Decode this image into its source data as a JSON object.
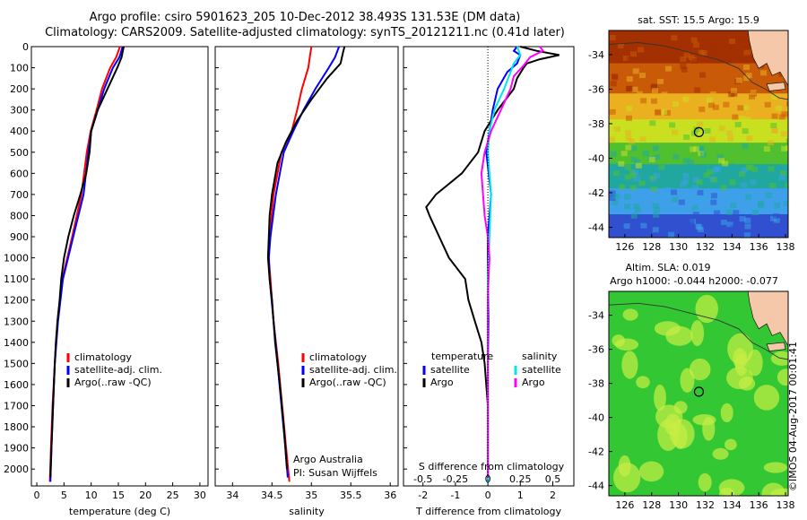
{
  "header": {
    "title_line1": "Argo profile: csiro 5901623_205 10-Dec-2012 38.493S 131.53E (DM data)",
    "title_line2": "Climatology: CARS2009. Satellite-adjusted climatology: synTS_20121211.nc (0.41d later)"
  },
  "watermark": "©IMOS 04-Aug-2017 00:01:41",
  "colors": {
    "climatology": "#ff0000",
    "satellite": "#0000ff",
    "argo": "#000000",
    "sal_satellite": "#00e5ee",
    "sal_argo": "#ff00ff"
  },
  "chart_data": [
    {
      "type": "line",
      "xlabel": "temperature (deg C)",
      "xticks": [
        0,
        5,
        10,
        15,
        20,
        25,
        30
      ],
      "xlim": [
        -1,
        31.5
      ],
      "ylim": [
        0,
        2080
      ],
      "yticks": [
        0,
        100,
        200,
        300,
        400,
        500,
        600,
        700,
        800,
        900,
        1000,
        1100,
        1200,
        1300,
        1400,
        1500,
        1600,
        1700,
        1800,
        1900,
        2000
      ],
      "legend": [
        "climatology",
        "satellite-adj. clim.",
        "Argo(..raw -QC)"
      ],
      "series": [
        {
          "name": "climatology",
          "color": "#ff0000",
          "depth": [
            0,
            50,
            100,
            200,
            300,
            400,
            500,
            700,
            900,
            1100,
            1300,
            1500,
            1700,
            1900,
            2060
          ],
          "values": [
            15.3,
            14.6,
            13.5,
            12.0,
            11.0,
            9.9,
            9.2,
            8.2,
            6.5,
            4.7,
            3.8,
            3.3,
            2.9,
            2.6,
            2.4
          ]
        },
        {
          "name": "satellite-adj. clim.",
          "color": "#0000ff",
          "depth": [
            0,
            50,
            100,
            200,
            300,
            400,
            500,
            700,
            900,
            1100,
            1300,
            1500,
            1700,
            1900,
            2060
          ],
          "values": [
            15.8,
            15.2,
            14.0,
            12.4,
            11.2,
            10.0,
            9.5,
            8.6,
            6.7,
            4.8,
            3.9,
            3.3,
            3.0,
            2.7,
            2.5
          ]
        },
        {
          "name": "Argo(..raw -QC)",
          "color": "#000000",
          "depth": [
            0,
            50,
            100,
            200,
            300,
            400,
            500,
            600,
            700,
            800,
            900,
            1000,
            1100,
            1200,
            1300,
            1400,
            1500,
            1700,
            1900,
            2040
          ],
          "values": [
            16.0,
            15.6,
            14.8,
            13.0,
            11.2,
            10.0,
            9.7,
            9.1,
            8.0,
            6.8,
            5.8,
            5.0,
            4.5,
            4.2,
            3.8,
            3.5,
            3.3,
            3.0,
            2.7,
            2.5
          ]
        }
      ]
    },
    {
      "type": "line",
      "xlabel": "salinity",
      "xticks": [
        34,
        34.5,
        35,
        35.5,
        36
      ],
      "xlim": [
        33.78,
        36.1
      ],
      "ylim": [
        0,
        2080
      ],
      "annotation": [
        "Argo Australia",
        "PI: Susan Wijffels"
      ],
      "legend": [
        "climatology",
        "satellite-adj. clim.",
        "Argo(..raw -QC)"
      ],
      "series": [
        {
          "name": "climatology",
          "color": "#ff0000",
          "depth": [
            0,
            50,
            100,
            200,
            300,
            400,
            500,
            700,
            900,
            1000,
            1100,
            1300,
            1500,
            1700,
            1900,
            2060
          ],
          "values": [
            35.0,
            34.98,
            34.96,
            34.88,
            34.82,
            34.75,
            34.62,
            34.52,
            34.47,
            34.46,
            34.48,
            34.52,
            34.58,
            34.63,
            34.68,
            34.72
          ]
        },
        {
          "name": "satellite-adj. clim.",
          "color": "#0000ff",
          "depth": [
            0,
            50,
            100,
            200,
            300,
            400,
            500,
            700,
            900,
            1000,
            1100,
            1300,
            1500,
            1700,
            1900,
            2040
          ],
          "values": [
            35.35,
            35.3,
            35.22,
            35.05,
            34.9,
            34.77,
            34.65,
            34.55,
            34.48,
            34.46,
            34.47,
            34.52,
            34.57,
            34.62,
            34.67,
            34.7
          ]
        },
        {
          "name": "Argo(..raw -QC)",
          "color": "#000000",
          "depth": [
            0,
            30,
            80,
            150,
            250,
            350,
            450,
            550,
            700,
            800,
            900,
            1000,
            1100,
            1200,
            1400,
            1600,
            1800,
            2000
          ],
          "values": [
            35.42,
            35.4,
            35.37,
            35.2,
            35.0,
            34.82,
            34.68,
            34.57,
            34.5,
            34.47,
            34.46,
            34.45,
            34.47,
            34.5,
            34.54,
            34.6,
            34.65,
            34.69
          ]
        }
      ]
    },
    {
      "type": "line",
      "xlabel": "T difference from climatology",
      "xlabel_top": "S difference from climatology",
      "xticks": [
        -2,
        -1,
        0,
        1,
        2
      ],
      "xticks_top": [
        "-0.5",
        "-0.25",
        "0",
        "0.25",
        "0.5"
      ],
      "xlim": [
        -2.6,
        2.65
      ],
      "ylim": [
        0,
        2080
      ],
      "legend_left": [
        "temperature",
        "satellite",
        "Argo"
      ],
      "legend_right": [
        "salinity",
        "satellite",
        "Argo"
      ],
      "series": [
        {
          "name": "temperature satellite",
          "color": "#0000ff",
          "depth": [
            0,
            20,
            40,
            80,
            120,
            200,
            300,
            400,
            500,
            700,
            900,
            1100,
            1300,
            1500,
            1700,
            1900,
            2060
          ],
          "values": [
            0.9,
            0.8,
            1.0,
            0.9,
            0.6,
            0.3,
            0.15,
            0.05,
            -0.05,
            0.1,
            0.0,
            0.0,
            0.02,
            0.0,
            0.0,
            0.0,
            0.0
          ]
        },
        {
          "name": "temperature Argo",
          "color": "#000000",
          "depth": [
            0,
            20,
            40,
            60,
            80,
            100,
            150,
            200,
            300,
            400,
            500,
            600,
            700,
            760,
            800,
            900,
            1000,
            1100,
            1200,
            1300,
            1400,
            1500,
            1700,
            1900,
            2040
          ],
          "values": [
            1.0,
            1.5,
            2.2,
            1.6,
            1.2,
            1.1,
            0.9,
            0.8,
            0.3,
            -0.1,
            -0.3,
            -0.8,
            -1.6,
            -1.9,
            -1.8,
            -1.5,
            -1.2,
            -0.7,
            -0.6,
            -0.4,
            -0.2,
            -0.1,
            0.0,
            0.0,
            0.0
          ]
        },
        {
          "name": "salinity satellite",
          "color": "#00e5ee",
          "depth": [
            0,
            40,
            80,
            120,
            200,
            300,
            400,
            500,
            700,
            900,
            1100,
            1300,
            1500,
            1700,
            1900,
            2060
          ],
          "values": [
            0.9,
            1.0,
            0.8,
            0.7,
            0.5,
            0.2,
            0.05,
            0.0,
            0.1,
            0.05,
            0.0,
            0.0,
            0.0,
            0.0,
            0.0,
            0.0
          ]
        },
        {
          "name": "salinity Argo",
          "color": "#ff00ff",
          "depth": [
            0,
            20,
            50,
            90,
            140,
            200,
            300,
            400,
            500,
            600,
            700,
            800,
            900,
            1000,
            1100,
            1200,
            1300,
            1500,
            1700,
            1900,
            2040
          ],
          "values": [
            1.6,
            1.7,
            1.3,
            1.1,
            0.8,
            0.7,
            0.4,
            0.1,
            -0.1,
            -0.2,
            -0.15,
            -0.1,
            0.0,
            0.05,
            0.02,
            0.0,
            0.0,
            0.0,
            0.0,
            0.0,
            0.0
          ]
        }
      ]
    },
    {
      "type": "heatmap",
      "title": "sat. SST: 15.5 Argo: 15.9",
      "xticks": [
        126,
        128,
        130,
        132,
        134,
        136,
        138
      ],
      "yticks": [
        -34,
        -36,
        -38,
        -40,
        -42,
        -44
      ],
      "xlim": [
        124.8,
        138.2
      ],
      "ylim": [
        -44.6,
        -32.6
      ],
      "marker": {
        "lon": 131.53,
        "lat": -38.49
      },
      "color_bands": [
        {
          "lat": -33.5,
          "color": "#a33000"
        },
        {
          "lat": -35.5,
          "color": "#c85a08"
        },
        {
          "lat": -37.0,
          "color": "#eab020"
        },
        {
          "lat": -38.5,
          "color": "#c8e020"
        },
        {
          "lat": -39.7,
          "color": "#50c030"
        },
        {
          "lat": -41.0,
          "color": "#20a8a0"
        },
        {
          "lat": -42.5,
          "color": "#3da0e8"
        },
        {
          "lat": -44.0,
          "color": "#3050d0"
        }
      ]
    },
    {
      "type": "heatmap",
      "title": "Altim. SLA: 0.019",
      "subtitle": "Argo h1000: -0.044 h2000: -0.077",
      "xticks": [
        126,
        128,
        130,
        132,
        134,
        136,
        138
      ],
      "yticks": [
        -34,
        -36,
        -38,
        -40,
        -42,
        -44
      ],
      "xlim": [
        124.8,
        138.2
      ],
      "ylim": [
        -44.6,
        -32.6
      ],
      "marker": {
        "lon": 131.53,
        "lat": -38.49
      },
      "base_color": "#33c833",
      "blob_color": "#c8ee44"
    }
  ]
}
